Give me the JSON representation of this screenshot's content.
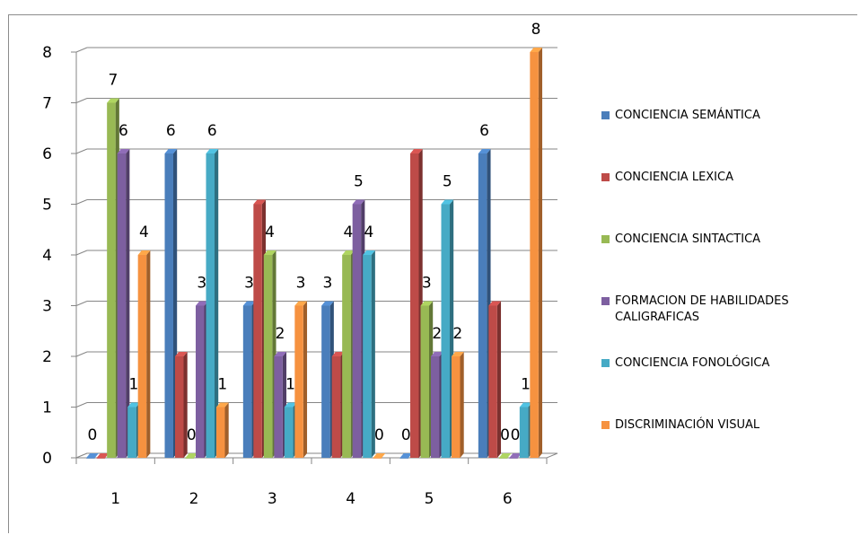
{
  "chart_data": {
    "type": "bar",
    "categories": [
      "1",
      "2",
      "3",
      "4",
      "5",
      "6"
    ],
    "ylim": [
      0,
      8
    ],
    "yticks": [
      "0",
      "1",
      "2",
      "3",
      "4",
      "5",
      "6",
      "7",
      "8"
    ],
    "grid": true,
    "legend_position": "right",
    "series": [
      {
        "name": "CONCIENCIA SEMÁNTICA",
        "color": "#4a7ebb",
        "values": [
          0,
          6,
          3,
          3,
          0,
          6
        ]
      },
      {
        "name": "CONCIENCIA LEXICA",
        "color": "#be4b48",
        "values": [
          0,
          2,
          5,
          2,
          6,
          3
        ]
      },
      {
        "name": "CONCIENCIA SINTACTICA",
        "color": "#98b954",
        "values": [
          7,
          0,
          4,
          4,
          3,
          0
        ]
      },
      {
        "name": "FORMACION DE HABILIDADES CALIGRAFICAS",
        "color": "#7d5fa0",
        "values": [
          6,
          3,
          2,
          5,
          2,
          0
        ]
      },
      {
        "name": "CONCIENCIA FONOLÓGICA",
        "color": "#46aac5",
        "values": [
          1,
          6,
          1,
          4,
          5,
          1
        ]
      },
      {
        "name": "DISCRIMINACIÓN VISUAL",
        "color": "#f69240",
        "values": [
          4,
          1,
          3,
          0,
          2,
          8
        ]
      }
    ],
    "data_labels": [
      {
        "category": 0,
        "series": 0,
        "text": "0"
      },
      {
        "category": 0,
        "series": 2,
        "text": "7"
      },
      {
        "category": 0,
        "series": 3,
        "text": "6"
      },
      {
        "category": 0,
        "series": 4,
        "text": "1"
      },
      {
        "category": 0,
        "series": 5,
        "text": "4"
      },
      {
        "category": 1,
        "series": 0,
        "text": "6"
      },
      {
        "category": 1,
        "series": 2,
        "text": "0"
      },
      {
        "category": 1,
        "series": 3,
        "text": "3"
      },
      {
        "category": 1,
        "series": 4,
        "text": "6"
      },
      {
        "category": 1,
        "series": 5,
        "text": "1"
      },
      {
        "category": 2,
        "series": 0,
        "text": "3"
      },
      {
        "category": 2,
        "series": 2,
        "text": "4"
      },
      {
        "category": 2,
        "series": 3,
        "text": "2"
      },
      {
        "category": 2,
        "series": 4,
        "text": "1"
      },
      {
        "category": 2,
        "series": 5,
        "text": "3"
      },
      {
        "category": 3,
        "series": 0,
        "text": "3"
      },
      {
        "category": 3,
        "series": 2,
        "text": "4"
      },
      {
        "category": 3,
        "series": 3,
        "text": "5"
      },
      {
        "category": 3,
        "series": 4,
        "text": "4"
      },
      {
        "category": 3,
        "series": 5,
        "text": "0"
      },
      {
        "category": 4,
        "series": 0,
        "text": "0"
      },
      {
        "category": 4,
        "series": 2,
        "text": "3"
      },
      {
        "category": 4,
        "series": 3,
        "text": "2"
      },
      {
        "category": 4,
        "series": 4,
        "text": "5"
      },
      {
        "category": 4,
        "series": 5,
        "text": "2"
      },
      {
        "category": 5,
        "series": 0,
        "text": "6"
      },
      {
        "category": 5,
        "series": 2,
        "text": "0"
      },
      {
        "category": 5,
        "series": 3,
        "text": "0"
      },
      {
        "category": 5,
        "series": 4,
        "text": "1"
      },
      {
        "category": 5,
        "series": 5,
        "text": "8"
      }
    ]
  }
}
